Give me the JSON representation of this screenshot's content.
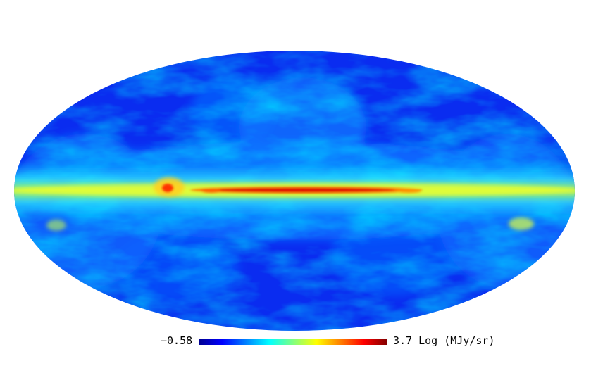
{
  "colorbar": {
    "min_label": "−0.58",
    "max_label": "3.7 Log (MJy/sr)",
    "min_value": -0.58,
    "max_value": 3.7,
    "scale": "log",
    "colormap": [
      "#00008f",
      "#0000ff",
      "#0080ff",
      "#00ffff",
      "#80ff80",
      "#ffff00",
      "#ff8000",
      "#ff0000",
      "#800000"
    ]
  },
  "map": {
    "projection": "mollweide",
    "background_color": "#ffffff"
  }
}
